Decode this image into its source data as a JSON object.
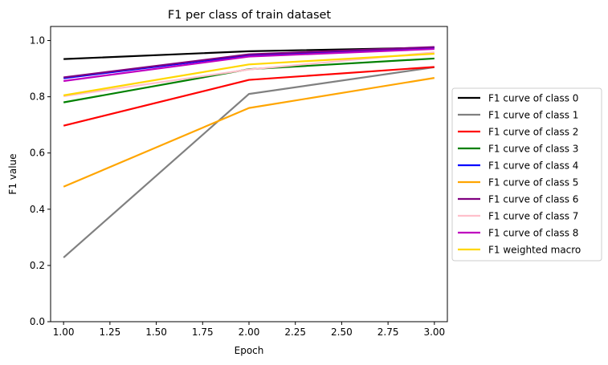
{
  "chart_data": {
    "type": "line",
    "title": "F1 per class of train dataset",
    "xlabel": "Epoch",
    "ylabel": "F1 value",
    "x": [
      1.0,
      2.0,
      3.0
    ],
    "xlim": [
      0.93,
      3.07
    ],
    "ylim": [
      0.0,
      1.05
    ],
    "xticks": [
      1.0,
      1.25,
      1.5,
      1.75,
      2.0,
      2.25,
      2.5,
      2.75,
      3.0
    ],
    "xtick_labels": [
      "1.00",
      "1.25",
      "1.50",
      "1.75",
      "2.00",
      "2.25",
      "2.50",
      "2.75",
      "3.00"
    ],
    "yticks": [
      0.0,
      0.2,
      0.4,
      0.6,
      0.8,
      1.0
    ],
    "ytick_labels": [
      "0.0",
      "0.2",
      "0.4",
      "0.6",
      "0.8",
      "1.0"
    ],
    "grid": false,
    "legend_position": "outside-right",
    "series": [
      {
        "name": "F1 curve of class 0",
        "color": "#000000",
        "values": [
          0.934,
          0.962,
          0.975
        ]
      },
      {
        "name": "F1 curve of class 1",
        "color": "#808080",
        "values": [
          0.228,
          0.81,
          0.905
        ]
      },
      {
        "name": "F1 curve of class 2",
        "color": "#ff0000",
        "values": [
          0.697,
          0.86,
          0.906
        ]
      },
      {
        "name": "F1 curve of class 3",
        "color": "#008000",
        "values": [
          0.78,
          0.898,
          0.936
        ]
      },
      {
        "name": "F1 curve of class 4",
        "color": "#0000ff",
        "values": [
          0.866,
          0.948,
          0.975
        ]
      },
      {
        "name": "F1 curve of class 5",
        "color": "#ffa500",
        "values": [
          0.48,
          0.76,
          0.867
        ]
      },
      {
        "name": "F1 curve of class 6",
        "color": "#800080",
        "values": [
          0.869,
          0.951,
          0.977
        ]
      },
      {
        "name": "F1 curve of class 7",
        "color": "#ffc0cb",
        "values": [
          0.802,
          0.897,
          0.958
        ]
      },
      {
        "name": "F1 curve of class 8",
        "color": "#bf00bf",
        "values": [
          0.856,
          0.943,
          0.97
        ]
      },
      {
        "name": "F1 weighted macro",
        "color": "#ffd700",
        "values": [
          0.805,
          0.915,
          0.953
        ]
      }
    ]
  }
}
